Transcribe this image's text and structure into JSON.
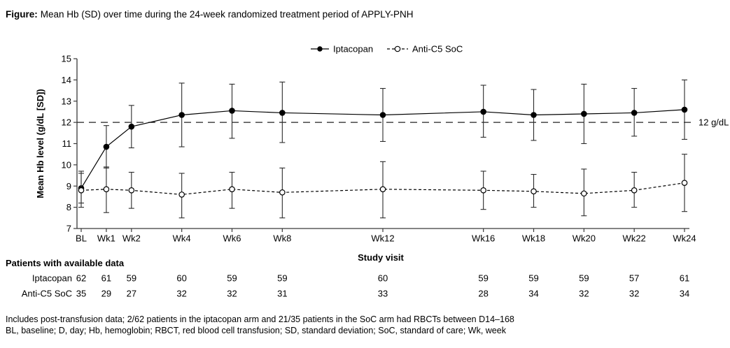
{
  "title": {
    "prefix": "Figure:",
    "text": "Mean Hb (SD) over time during the 24-week randomized treatment period of APPLY-PNH"
  },
  "chart_data": {
    "type": "line",
    "x_axis_label": "Study visit",
    "y_axis_label": "Mean Hb level (g/dL [SD])",
    "ylim": [
      7,
      15
    ],
    "y_ticks": [
      7,
      8,
      9,
      10,
      11,
      12,
      13,
      14,
      15
    ],
    "categories": [
      "BL",
      "Wk1",
      "Wk2",
      "Wk4",
      "Wk6",
      "Wk8",
      "Wk12",
      "Wk16",
      "Wk18",
      "Wk20",
      "Wk22",
      "Wk24"
    ],
    "x_weeks": [
      0,
      1,
      2,
      4,
      6,
      8,
      12,
      16,
      18,
      20,
      22,
      24
    ],
    "grid": false,
    "legend_position": "top-center",
    "reference_line": {
      "value": 12,
      "label": "12 g/dL"
    },
    "series": [
      {
        "name": "Iptacopan",
        "marker": "filled-circle",
        "line_style": "solid",
        "values": [
          8.9,
          10.85,
          11.8,
          12.35,
          12.55,
          12.45,
          12.35,
          12.5,
          12.35,
          12.4,
          12.45,
          12.6
        ],
        "upper": [
          9.7,
          11.85,
          12.8,
          13.85,
          13.8,
          13.9,
          13.6,
          13.75,
          13.55,
          13.8,
          13.6,
          14.0
        ],
        "lower": [
          8.2,
          9.85,
          10.8,
          10.85,
          11.25,
          11.05,
          11.1,
          11.3,
          11.15,
          11.0,
          11.35,
          11.2
        ]
      },
      {
        "name": "Anti-C5 SoC",
        "marker": "open-circle",
        "line_style": "dashed",
        "values": [
          8.8,
          8.85,
          8.8,
          8.6,
          8.85,
          8.7,
          8.85,
          8.8,
          8.75,
          8.65,
          8.8,
          9.15
        ],
        "upper": [
          9.6,
          9.9,
          9.65,
          9.6,
          9.65,
          9.85,
          10.15,
          9.7,
          9.55,
          9.8,
          9.65,
          10.5
        ],
        "lower": [
          8.0,
          7.75,
          7.95,
          7.5,
          7.95,
          7.5,
          7.5,
          7.9,
          8.0,
          7.6,
          8.0,
          7.8
        ]
      }
    ]
  },
  "table": {
    "heading": "Patients with available data",
    "rows": [
      {
        "label": "Iptacopan",
        "values": [
          62,
          61,
          59,
          60,
          59,
          59,
          60,
          59,
          59,
          59,
          57,
          61
        ]
      },
      {
        "label": "Anti-C5 SoC",
        "values": [
          35,
          29,
          27,
          32,
          32,
          31,
          33,
          28,
          34,
          32,
          32,
          34
        ]
      }
    ]
  },
  "footnotes": [
    "Includes post-transfusion data; 2/62 patients in the iptacopan arm and 21/35 patients in the SoC arm had RBCTs between D14–168",
    "BL, baseline; D, day; Hb, hemoglobin; RBCT, red blood cell transfusion; SD, standard deviation; SoC, standard of care; Wk, week"
  ],
  "colors": {
    "foreground": "#000000",
    "axis": "#3a3a3a",
    "error_bar": "#2b2b2b",
    "background": "#ffffff"
  }
}
